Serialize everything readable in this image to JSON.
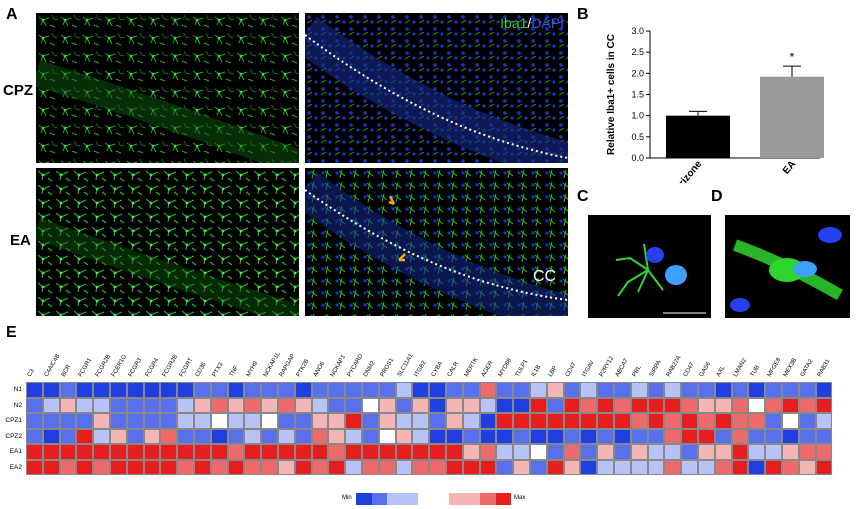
{
  "panels": {
    "A": "A",
    "B": "B",
    "C": "C",
    "D": "D",
    "E": "E"
  },
  "rows": {
    "cpz": "CPZ",
    "ea": "EA"
  },
  "legend": {
    "iba": "Iba1",
    "slash": "/",
    "dapi": "DAPI"
  },
  "cc_label": "CC",
  "chart_data": {
    "type": "bar",
    "categories": [
      "Cuprizone",
      "EA"
    ],
    "values": [
      1.0,
      1.92
    ],
    "errors": [
      0.1,
      0.25
    ],
    "colors": [
      "#000000",
      "#9a9a9a"
    ],
    "ylabel": "Relative Iba1+ cells in CC",
    "yticks": [
      "0.0",
      "0.5",
      "1.0",
      "1.5",
      "2.0",
      "2.5",
      "3.0"
    ],
    "ylim": [
      0,
      3.0
    ],
    "significance": "*"
  },
  "heatmap": {
    "columns": [
      "C3",
      "C4A/C4B",
      "BCR",
      "FCGR1",
      "FCGR2B",
      "FCER1G",
      "FCGR3",
      "FCGR4",
      "FCGR2B",
      "FCGRT",
      "CD36",
      "PTX3",
      "TNF",
      "MYH9",
      "NCKAP1L",
      "RAPGAP",
      "PTK2B",
      "ANO6",
      "NCKAP1",
      "PYCARD",
      "DNM2",
      "PROS1",
      "SLC11A1",
      "ITGB2",
      "CYBA",
      "CALR",
      "MERTK",
      "AGER",
      "MYD88",
      "TULP1",
      "IL1B",
      "LBP",
      "CD47",
      "ITGAV",
      "P2RY12",
      "ABCA7",
      "PRL",
      "SIRPA",
      "RAB27A",
      "CD47",
      "GAS6",
      "AXL",
      "LMAN2",
      "TUB",
      "MFGE8",
      "MEX3B",
      "GATA2",
      "RAB31"
    ],
    "rows": [
      "N1",
      "N2",
      "CPZ1",
      "CPZ2",
      "EA1",
      "EA2"
    ],
    "values": [
      [
        -3,
        -3,
        -2,
        -3,
        -3,
        -3,
        -3,
        -3,
        -3,
        -3,
        -2,
        -2,
        -3,
        -2,
        -2,
        -2,
        -3,
        -2,
        -2,
        -2,
        -2,
        -2,
        -1,
        -3,
        -3,
        -2,
        -2,
        2,
        -2,
        -2,
        -1,
        1,
        -2,
        -1,
        -2,
        -2,
        -1,
        -2,
        -1,
        -2,
        -2,
        -3,
        -2,
        -3,
        -2,
        -2,
        -2,
        -3
      ],
      [
        -2,
        -1,
        1,
        -1,
        -1,
        -2,
        -2,
        -2,
        -2,
        -1,
        1,
        2,
        1,
        2,
        1,
        2,
        1,
        -1,
        -2,
        -2,
        0,
        1,
        -2,
        1,
        -3,
        1,
        1,
        -1,
        -3,
        -3,
        3,
        -2,
        3,
        2,
        3,
        2,
        3,
        3,
        3,
        2,
        1,
        1,
        2,
        0,
        2,
        3,
        2,
        3
      ],
      [
        -2,
        -2,
        -2,
        -2,
        1,
        -2,
        -2,
        -2,
        -2,
        -1,
        -1,
        0,
        -1,
        -1,
        0,
        -2,
        -2,
        1,
        1,
        3,
        -2,
        1,
        -1,
        -1,
        -2,
        1,
        -1,
        -3,
        3,
        3,
        3,
        3,
        3,
        3,
        3,
        3,
        2,
        3,
        2,
        3,
        2,
        3,
        2,
        2,
        -2,
        0,
        -2,
        -1
      ],
      [
        -2,
        -3,
        -2,
        3,
        -1,
        1,
        -2,
        1,
        2,
        -2,
        -2,
        -3,
        -2,
        -1,
        -2,
        -1,
        -2,
        2,
        1,
        -1,
        -2,
        0,
        1,
        -1,
        -3,
        -3,
        -2,
        -3,
        -3,
        -2,
        -3,
        -3,
        -2,
        -3,
        -2,
        -3,
        -2,
        -2,
        2,
        3,
        3,
        -2,
        2,
        -2,
        -2,
        -3,
        -2,
        -2
      ],
      [
        3,
        3,
        3,
        3,
        3,
        3,
        3,
        3,
        3,
        3,
        3,
        3,
        2,
        3,
        3,
        3,
        3,
        3,
        2,
        3,
        3,
        3,
        3,
        3,
        3,
        3,
        1,
        2,
        -1,
        -1,
        0,
        -2,
        2,
        -2,
        1,
        -2,
        1,
        -1,
        -1,
        -2,
        1,
        1,
        3,
        -1,
        -1,
        1,
        2,
        2
      ],
      [
        3,
        3,
        2,
        3,
        2,
        3,
        3,
        3,
        3,
        2,
        3,
        2,
        3,
        2,
        2,
        1,
        3,
        2,
        3,
        -1,
        2,
        2,
        -1,
        2,
        2,
        3,
        3,
        3,
        -2,
        1,
        -2,
        3,
        1,
        -3,
        -1,
        -1,
        -1,
        -1,
        2,
        -1,
        -1,
        2,
        3,
        -3,
        3,
        2,
        1,
        3
      ]
    ],
    "legend_min": "Min",
    "legend_max": "Max"
  }
}
